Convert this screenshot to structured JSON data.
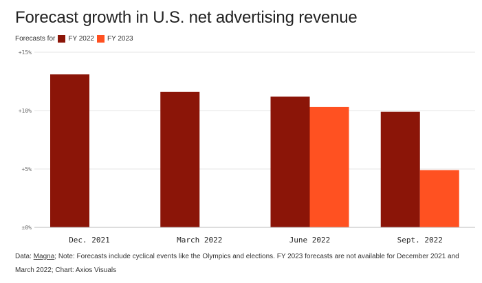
{
  "header": {
    "title": "Forecast growth in U.S. net advertising revenue"
  },
  "legend": {
    "prefix": "Forecasts for",
    "items": [
      {
        "label": "FY 2022",
        "color": "#8b1508"
      },
      {
        "label": "FY 2023",
        "color": "#ff5121"
      }
    ]
  },
  "footer": {
    "data_prefix": "Data: ",
    "data_source": "Magna",
    "note": "; Note: Forecasts include cyclical events like the Olympics and elections. FY 2023 forecasts are not available for December 2021 and March 2022; Chart: Axios Visuals"
  },
  "chart_data": {
    "type": "bar",
    "title": "Forecast growth in U.S. net advertising revenue",
    "xlabel": "",
    "ylabel": "",
    "categories": [
      "Dec. 2021",
      "March 2022",
      "June 2022",
      "Sept. 2022"
    ],
    "series": [
      {
        "name": "FY 2022",
        "color": "#8b1508",
        "values": [
          13.1,
          11.6,
          11.2,
          9.9
        ]
      },
      {
        "name": "FY 2023",
        "color": "#ff5121",
        "values": [
          null,
          null,
          10.3,
          4.9
        ]
      }
    ],
    "ylim": [
      0,
      15
    ],
    "yticks": [
      0,
      5,
      10,
      15
    ],
    "ytick_labels": [
      "±0%",
      "+5%",
      "+10%",
      "+15%"
    ],
    "grid": true,
    "legend_position": "top-left"
  }
}
